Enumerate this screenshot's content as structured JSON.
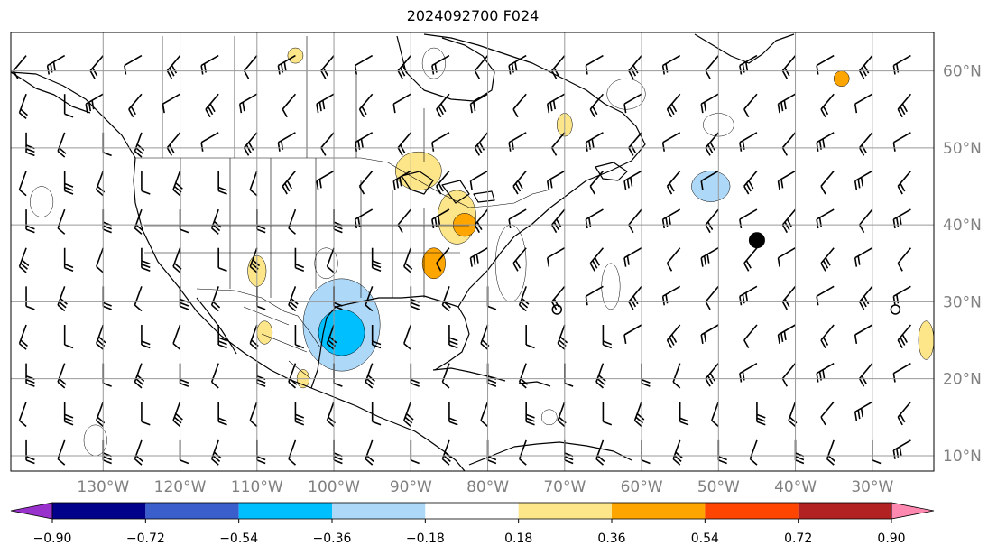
{
  "title": "2024092700 F024",
  "map": {
    "projection": "plate-carree",
    "lon_range": [
      -142,
      -22
    ],
    "lat_range": [
      8,
      65
    ],
    "lon_ticks": [
      {
        "value": -130,
        "label": "130°W"
      },
      {
        "value": -120,
        "label": "120°W"
      },
      {
        "value": -110,
        "label": "110°W"
      },
      {
        "value": -100,
        "label": "100°W"
      },
      {
        "value": -90,
        "label": "90°W"
      },
      {
        "value": -80,
        "label": "80°W"
      },
      {
        "value": -70,
        "label": "70°W"
      },
      {
        "value": -60,
        "label": "60°W"
      },
      {
        "value": -50,
        "label": "50°W"
      },
      {
        "value": -40,
        "label": "40°W"
      },
      {
        "value": -30,
        "label": "30°W"
      }
    ],
    "lat_ticks": [
      {
        "value": 10,
        "label": "10°N"
      },
      {
        "value": 20,
        "label": "20°N"
      },
      {
        "value": 30,
        "label": "30°N"
      },
      {
        "value": 40,
        "label": "40°N"
      },
      {
        "value": 50,
        "label": "50°N"
      },
      {
        "value": 60,
        "label": "60°N"
      }
    ],
    "gridlines": true,
    "lat_label_side": "right",
    "lon_label_side": "bottom"
  },
  "colorbar": {
    "orientation": "horizontal",
    "extend": "both",
    "bounds": [
      -0.9,
      -0.72,
      -0.54,
      -0.36,
      -0.18,
      0.18,
      0.36,
      0.54,
      0.72,
      0.9
    ],
    "tick_labels": [
      "−0.90",
      "−0.72",
      "−0.54",
      "−0.36",
      "−0.18",
      "0.18",
      "0.36",
      "0.54",
      "0.72",
      "0.90"
    ],
    "colors": [
      "#9932cc",
      "#00008b",
      "#3a5fcd",
      "#00bfff",
      "#add8f7",
      "#ffffff",
      "#fde68a",
      "#ffa500",
      "#ff4500",
      "#b22222",
      "#ff88b0"
    ]
  },
  "anomaly_regions": [
    {
      "lon": -99,
      "lat": 27,
      "rx": 5,
      "ry": 6,
      "level": -0.36
    },
    {
      "lon": -99,
      "lat": 26,
      "rx": 3,
      "ry": 3,
      "level": -0.54
    },
    {
      "lon": -101,
      "lat": 35,
      "rx": 1.5,
      "ry": 2,
      "level": -0.18
    },
    {
      "lon": -77,
      "lat": 35,
      "rx": 2,
      "ry": 5,
      "level": -0.18
    },
    {
      "lon": -64,
      "lat": 32,
      "rx": 1.2,
      "ry": 3,
      "level": -0.18
    },
    {
      "lon": -62,
      "lat": 57,
      "rx": 2.5,
      "ry": 2,
      "level": -0.18
    },
    {
      "lon": -51,
      "lat": 45,
      "rx": 2.5,
      "ry": 2,
      "level": -0.36
    },
    {
      "lon": -50,
      "lat": 53,
      "rx": 2,
      "ry": 1.5,
      "level": -0.18
    },
    {
      "lon": -87,
      "lat": 61,
      "rx": 1.5,
      "ry": 2,
      "level": -0.18
    },
    {
      "lon": -131,
      "lat": 12,
      "rx": 1.5,
      "ry": 2,
      "level": -0.18
    },
    {
      "lon": -138,
      "lat": 43,
      "rx": 1.5,
      "ry": 2,
      "level": -0.18
    },
    {
      "lon": -72,
      "lat": 15,
      "rx": 1,
      "ry": 1,
      "level": -0.18
    },
    {
      "lon": -89,
      "lat": 47,
      "rx": 3,
      "ry": 2.5,
      "level": 0.18
    },
    {
      "lon": -84,
      "lat": 41,
      "rx": 2.5,
      "ry": 3.5,
      "level": 0.18
    },
    {
      "lon": -83,
      "lat": 40,
      "rx": 1.5,
      "ry": 1.5,
      "level": 0.36
    },
    {
      "lon": -87,
      "lat": 35,
      "rx": 1.5,
      "ry": 2,
      "level": 0.36
    },
    {
      "lon": -110,
      "lat": 34,
      "rx": 1.2,
      "ry": 2,
      "level": 0.18
    },
    {
      "lon": -109,
      "lat": 26,
      "rx": 1,
      "ry": 1.5,
      "level": 0.18
    },
    {
      "lon": -70,
      "lat": 53,
      "rx": 1,
      "ry": 1.5,
      "level": 0.18
    },
    {
      "lon": -34,
      "lat": 59,
      "rx": 1,
      "ry": 1,
      "level": 0.36
    },
    {
      "lon": -23,
      "lat": 25,
      "rx": 1,
      "ry": 2.5,
      "level": 0.18
    },
    {
      "lon": -104,
      "lat": 20,
      "rx": 0.8,
      "ry": 1.2,
      "level": 0.18
    },
    {
      "lon": -105,
      "lat": 62,
      "rx": 1,
      "ry": 1,
      "level": 0.18
    }
  ],
  "markers": [
    {
      "lon": -45,
      "lat": 38,
      "type": "filled-circle"
    },
    {
      "lon": -71,
      "lat": 29,
      "type": "open-circle"
    },
    {
      "lon": -27,
      "lat": 29,
      "type": "open-circle"
    }
  ]
}
